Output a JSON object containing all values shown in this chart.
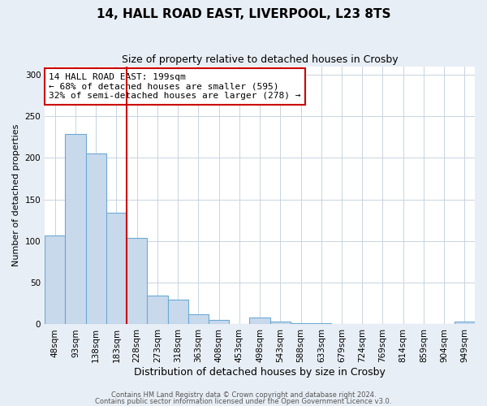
{
  "title1": "14, HALL ROAD EAST, LIVERPOOL, L23 8TS",
  "title2": "Size of property relative to detached houses in Crosby",
  "xlabel": "Distribution of detached houses by size in Crosby",
  "ylabel": "Number of detached properties",
  "bin_labels": [
    "48sqm",
    "93sqm",
    "138sqm",
    "183sqm",
    "228sqm",
    "273sqm",
    "318sqm",
    "363sqm",
    "408sqm",
    "453sqm",
    "498sqm",
    "543sqm",
    "588sqm",
    "633sqm",
    "679sqm",
    "724sqm",
    "769sqm",
    "814sqm",
    "859sqm",
    "904sqm",
    "949sqm"
  ],
  "bar_values": [
    107,
    229,
    205,
    134,
    104,
    35,
    30,
    12,
    5,
    0,
    8,
    3,
    1,
    1,
    0,
    0,
    0,
    0,
    0,
    0,
    3
  ],
  "bar_color": "#c9d9ec",
  "bar_edge_color": "#6aaad4",
  "property_size_bin": 3.5,
  "red_line_color": "#cc0000",
  "annotation_text": "14 HALL ROAD EAST: 199sqm\n← 68% of detached houses are smaller (595)\n32% of semi-detached houses are larger (278) →",
  "annotation_box_color": "#ffffff",
  "annotation_box_edge_color": "#cc0000",
  "ylim": [
    0,
    310
  ],
  "yticks": [
    0,
    50,
    100,
    150,
    200,
    250,
    300
  ],
  "footnote1": "Contains HM Land Registry data © Crown copyright and database right 2024.",
  "footnote2": "Contains public sector information licensed under the Open Government Licence v3.0.",
  "background_color": "#e8eef5",
  "plot_background_color": "#ffffff",
  "grid_color": "#c8d4e0",
  "title1_fontsize": 11,
  "title2_fontsize": 9,
  "xlabel_fontsize": 9,
  "ylabel_fontsize": 8,
  "tick_fontsize": 7.5,
  "annotation_fontsize": 8,
  "footnote_fontsize": 6
}
